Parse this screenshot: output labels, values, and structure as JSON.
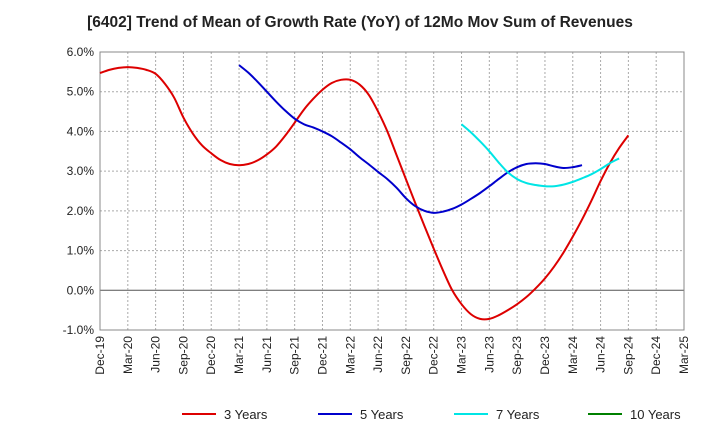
{
  "chart_data": {
    "type": "line",
    "title": "[6402]  Trend of Mean of Growth Rate (YoY) of 12Mo Mov Sum of Revenues",
    "xlabel": "",
    "ylabel": "",
    "ylim": [
      -1.0,
      6.0
    ],
    "yticks": [
      "6.0%",
      "5.0%",
      "4.0%",
      "3.0%",
      "2.0%",
      "1.0%",
      "0.0%",
      "-1.0%"
    ],
    "ytick_values": [
      6,
      5,
      4,
      3,
      2,
      1,
      0,
      -1
    ],
    "x_months": [
      "Dec-19",
      "Jan-20",
      "Feb-20",
      "Mar-20",
      "Apr-20",
      "May-20",
      "Jun-20",
      "Jul-20",
      "Aug-20",
      "Sep-20",
      "Oct-20",
      "Nov-20",
      "Dec-20",
      "Jan-21",
      "Feb-21",
      "Mar-21",
      "Apr-21",
      "May-21",
      "Jun-21",
      "Jul-21",
      "Aug-21",
      "Sep-21",
      "Oct-21",
      "Nov-21",
      "Dec-21",
      "Jan-22",
      "Feb-22",
      "Mar-22",
      "Apr-22",
      "May-22",
      "Jun-22",
      "Jul-22",
      "Aug-22",
      "Sep-22",
      "Oct-22",
      "Nov-22",
      "Dec-22",
      "Jan-23",
      "Feb-23",
      "Mar-23",
      "Apr-23",
      "May-23",
      "Jun-23",
      "Jul-23",
      "Aug-23",
      "Sep-23",
      "Oct-23",
      "Nov-23",
      "Dec-23",
      "Jan-24",
      "Feb-24",
      "Mar-24",
      "Apr-24",
      "May-24",
      "Jun-24",
      "Jul-24",
      "Aug-24",
      "Sep-24",
      "Oct-24",
      "Nov-24",
      "Dec-24",
      "Jan-25",
      "Feb-25",
      "Mar-25"
    ],
    "xtick_labels": [
      "Dec-19",
      "Mar-20",
      "Jun-20",
      "Sep-20",
      "Dec-20",
      "Mar-21",
      "Jun-21",
      "Sep-21",
      "Dec-21",
      "Mar-22",
      "Jun-22",
      "Sep-22",
      "Dec-22",
      "Mar-23",
      "Jun-23",
      "Sep-23",
      "Dec-23",
      "Mar-24",
      "Jun-24",
      "Sep-24",
      "Dec-24",
      "Mar-25"
    ],
    "grid": true,
    "legend_position": "bottom",
    "series": [
      {
        "name": "3 Years",
        "color": "#dd0000",
        "start_index": 0,
        "values": [
          5.47,
          5.55,
          5.6,
          5.62,
          5.6,
          5.55,
          5.45,
          5.2,
          4.85,
          4.35,
          3.95,
          3.65,
          3.45,
          3.28,
          3.18,
          3.15,
          3.18,
          3.27,
          3.42,
          3.62,
          3.9,
          4.22,
          4.55,
          4.82,
          5.05,
          5.22,
          5.3,
          5.3,
          5.18,
          4.92,
          4.5,
          4.0,
          3.4,
          2.8,
          2.2,
          1.62,
          1.05,
          0.5,
          0.0,
          -0.35,
          -0.6,
          -0.72,
          -0.72,
          -0.63,
          -0.5,
          -0.35,
          -0.17,
          0.05,
          0.3,
          0.6,
          0.95,
          1.35,
          1.78,
          2.25,
          2.75,
          3.2,
          3.58,
          3.9
        ]
      },
      {
        "name": "5 Years",
        "color": "#0000cc",
        "start_index": 15,
        "values": [
          5.67,
          5.48,
          5.25,
          5.0,
          4.75,
          4.52,
          4.32,
          4.18,
          4.1,
          4.0,
          3.88,
          3.72,
          3.55,
          3.35,
          3.17,
          2.98,
          2.8,
          2.58,
          2.32,
          2.12,
          2.0,
          1.95,
          1.98,
          2.05,
          2.16,
          2.3,
          2.45,
          2.62,
          2.8,
          2.97,
          3.1,
          3.18,
          3.2,
          3.18,
          3.12,
          3.08,
          3.1,
          3.15
        ]
      },
      {
        "name": "7 Years",
        "color": "#00e5e5",
        "start_index": 39,
        "values": [
          4.18,
          3.98,
          3.75,
          3.5,
          3.22,
          2.97,
          2.8,
          2.7,
          2.65,
          2.62,
          2.62,
          2.66,
          2.73,
          2.82,
          2.92,
          3.05,
          3.2,
          3.32
        ]
      },
      {
        "name": "10 Years",
        "color": "#008000",
        "start_index": 0,
        "values": []
      }
    ]
  }
}
